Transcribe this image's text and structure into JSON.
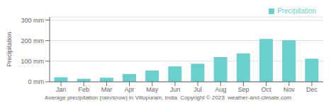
{
  "chart_data": {
    "type": "bar",
    "title": "Average precipitation (rain/snow) in Villupuram, India  Copyright © 2023  weather-and-climate.com",
    "y_label": "Precipitation",
    "categories": [
      "Jan",
      "Feb",
      "Mar",
      "Apr",
      "May",
      "Jun",
      "Jul",
      "Aug",
      "Sep",
      "Oct",
      "Nov",
      "Dec"
    ],
    "series": [
      {
        "name": "Precipitation",
        "color": "#6dcece",
        "values": [
          22,
          15,
          20,
          38,
          55,
          75,
          88,
          120,
          138,
          208,
          202,
          112
        ]
      }
    ],
    "ylim": [
      0,
      315
    ],
    "yticks": [
      {
        "value": 0,
        "label": "0 mm"
      },
      {
        "value": 100,
        "label": "100 mm"
      },
      {
        "value": 200,
        "label": "200 mm"
      },
      {
        "value": 300,
        "label": "300 mm"
      }
    ],
    "grid": true,
    "legend": "upper right"
  }
}
